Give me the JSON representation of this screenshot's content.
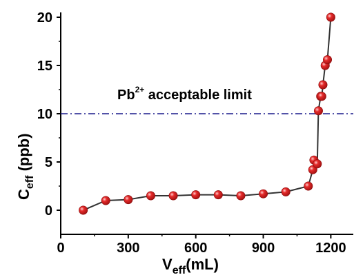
{
  "chart_data": {
    "type": "scatter",
    "xlabel": {
      "main": "V",
      "sub": "eff",
      "rest": "(mL)"
    },
    "ylabel": {
      "main": "C",
      "sub": "eff",
      "rest": " (ppb)"
    },
    "xlim": [
      0,
      1300
    ],
    "ylim": [
      -2.5,
      20.5
    ],
    "xticks": [
      0,
      300,
      600,
      900,
      1200
    ],
    "yticks": [
      0,
      5,
      10,
      15,
      20
    ],
    "grid": false,
    "series": [
      {
        "color": "#e52b2b",
        "line_color": "#333333",
        "points": [
          {
            "x": 100,
            "y": 0.0
          },
          {
            "x": 200,
            "y": 1.0
          },
          {
            "x": 300,
            "y": 1.1
          },
          {
            "x": 400,
            "y": 1.5
          },
          {
            "x": 500,
            "y": 1.5
          },
          {
            "x": 600,
            "y": 1.6
          },
          {
            "x": 700,
            "y": 1.6
          },
          {
            "x": 800,
            "y": 1.5
          },
          {
            "x": 900,
            "y": 1.7
          },
          {
            "x": 1000,
            "y": 1.9
          },
          {
            "x": 1100,
            "y": 2.5
          },
          {
            "x": 1120,
            "y": 4.2
          },
          {
            "x": 1125,
            "y": 5.2
          },
          {
            "x": 1140,
            "y": 4.8
          },
          {
            "x": 1145,
            "y": 10.3
          },
          {
            "x": 1155,
            "y": 11.8
          },
          {
            "x": 1160,
            "y": 11.8
          },
          {
            "x": 1165,
            "y": 13.0
          },
          {
            "x": 1175,
            "y": 15.0
          },
          {
            "x": 1185,
            "y": 15.6
          },
          {
            "x": 1200,
            "y": 20.0
          }
        ]
      }
    ],
    "reference_line": {
      "y": 10,
      "color": "#1a1a8c",
      "style": "dash-dot",
      "label_main": "Pb",
      "label_sup": "2+",
      "label_rest": " acceptable limit"
    }
  }
}
